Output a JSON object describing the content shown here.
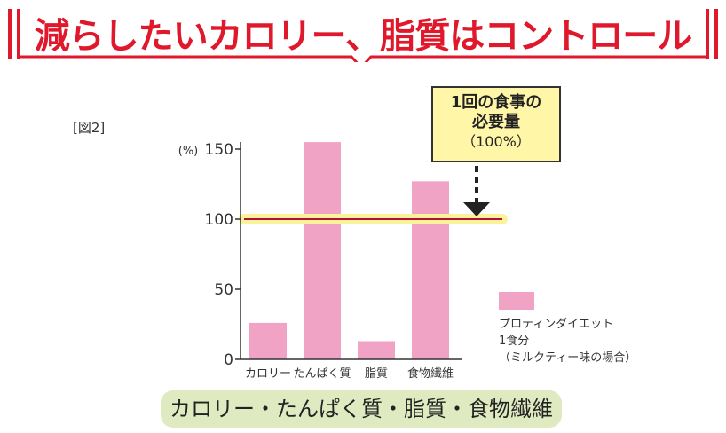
{
  "header": {
    "title": "減らしたいカロリー、脂質はコントロール",
    "accent_color": "#e0182c"
  },
  "figure_label": "[図2]",
  "callout": {
    "line1": "1回の食事の",
    "line2": "必要量",
    "line3": "（100%）"
  },
  "legend": {
    "series_label": "プロティンダイエット\n1食分\n（ミルクティー味の場合）",
    "color": "#f0a3c5"
  },
  "footer_label": "カロリー・たんぱく質・脂質・食物繊維",
  "chart_data": {
    "type": "bar",
    "categories": [
      "カロリー",
      "たんぱく質",
      "脂質",
      "食物繊維"
    ],
    "series": [
      {
        "name": "プロティンダイエット 1食分（ミルクティー味の場合）",
        "values": [
          26,
          155,
          13,
          127
        ]
      }
    ],
    "reference_line": {
      "value": 100
    },
    "ylabel": "(%)",
    "ylim": [
      0,
      150
    ],
    "yticks": [
      0,
      50,
      100,
      150
    ],
    "grid": false,
    "legend_position": "right"
  }
}
